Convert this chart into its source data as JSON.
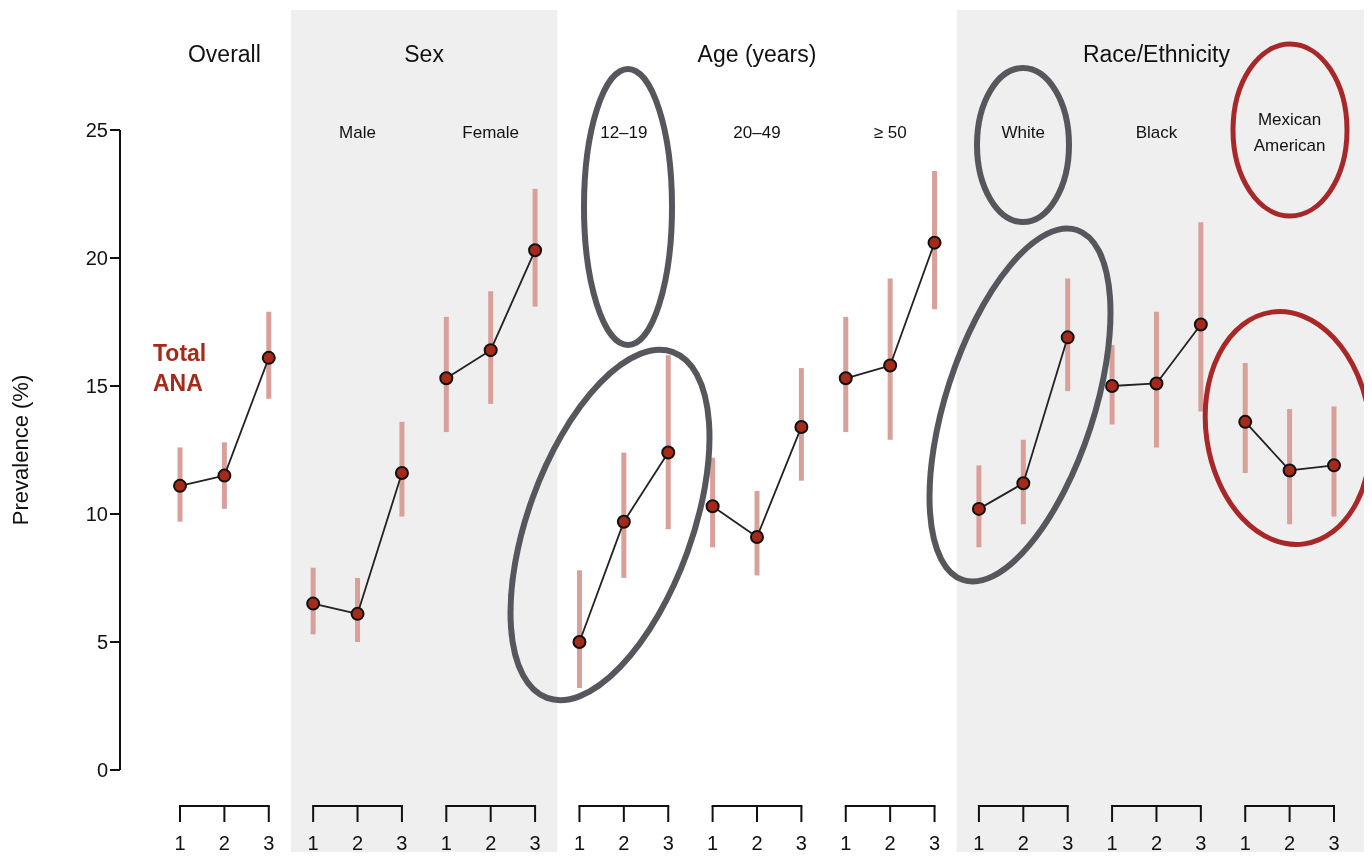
{
  "chart_data": {
    "type": "line",
    "ylabel": "Prevalence (%)",
    "ylim": [
      0,
      25
    ],
    "yticks": [
      0,
      5,
      10,
      15,
      20,
      25
    ],
    "marker": "circle",
    "line_style": "solid",
    "categories": [
      "1",
      "2",
      "3",
      "1",
      "2",
      "3",
      "1",
      "2",
      "3",
      "1",
      "2",
      "3",
      "1",
      "2",
      "3",
      "1",
      "2",
      "3",
      "1",
      "2",
      "3",
      "1",
      "2",
      "3",
      "1",
      "2",
      "3"
    ],
    "annotations": [
      "Overall",
      "Sex",
      "Age (years)",
      "Race/Ethnicity",
      "Male",
      "Female",
      "12–19",
      "20–49",
      "≥ 50",
      "White",
      "Black",
      "Mexican American",
      "Total ANA"
    ],
    "series": [
      {
        "color": "#a52a1a",
        "values": [
          11.1,
          11.5,
          16.1,
          null,
          null,
          null,
          null,
          null,
          null,
          null,
          null,
          null,
          null,
          null,
          null,
          null,
          null,
          null,
          null,
          null,
          null,
          null,
          null,
          null,
          null,
          null,
          null
        ],
        "errors": [
          [
            9.7,
            12.6
          ],
          [
            10.2,
            12.8
          ],
          [
            14.5,
            17.9
          ],
          null,
          null,
          null,
          null,
          null,
          null,
          null,
          null,
          null,
          null,
          null,
          null,
          null,
          null,
          null,
          null,
          null,
          null,
          null,
          null,
          null,
          null,
          null,
          null
        ]
      },
      {
        "color": "#a52a1a",
        "values": [
          null,
          null,
          null,
          6.5,
          6.1,
          11.6,
          null,
          null,
          null,
          null,
          null,
          null,
          null,
          null,
          null,
          null,
          null,
          null,
          null,
          null,
          null,
          null,
          null,
          null,
          null,
          null,
          null
        ],
        "errors": [
          null,
          null,
          null,
          [
            5.3,
            7.9
          ],
          [
            5.0,
            7.5
          ],
          [
            9.9,
            13.6
          ],
          null,
          null,
          null,
          null,
          null,
          null,
          null,
          null,
          null,
          null,
          null,
          null,
          null,
          null,
          null,
          null,
          null,
          null,
          null,
          null,
          null
        ]
      },
      {
        "color": "#a52a1a",
        "values": [
          null,
          null,
          null,
          null,
          null,
          null,
          15.3,
          16.4,
          20.3,
          null,
          null,
          null,
          null,
          null,
          null,
          null,
          null,
          null,
          null,
          null,
          null,
          null,
          null,
          null,
          null,
          null,
          null
        ],
        "errors": [
          null,
          null,
          null,
          null,
          null,
          null,
          [
            13.2,
            17.7
          ],
          [
            14.3,
            18.7
          ],
          [
            18.1,
            22.7
          ],
          null,
          null,
          null,
          null,
          null,
          null,
          null,
          null,
          null,
          null,
          null,
          null,
          null,
          null,
          null,
          null,
          null,
          null
        ]
      },
      {
        "color": "#a52a1a",
        "values": [
          null,
          null,
          null,
          null,
          null,
          null,
          null,
          null,
          null,
          5.0,
          9.7,
          12.4,
          null,
          null,
          null,
          null,
          null,
          null,
          null,
          null,
          null,
          null,
          null,
          null,
          null,
          null,
          null
        ],
        "errors": [
          null,
          null,
          null,
          null,
          null,
          null,
          null,
          null,
          null,
          [
            3.2,
            7.8
          ],
          [
            7.5,
            12.4
          ],
          [
            9.4,
            16.2
          ],
          null,
          null,
          null,
          null,
          null,
          null,
          null,
          null,
          null,
          null,
          null,
          null,
          null,
          null,
          null
        ]
      },
      {
        "color": "#a52a1a",
        "values": [
          null,
          null,
          null,
          null,
          null,
          null,
          null,
          null,
          null,
          null,
          null,
          null,
          10.3,
          9.1,
          13.4,
          null,
          null,
          null,
          null,
          null,
          null,
          null,
          null,
          null,
          null,
          null,
          null
        ],
        "errors": [
          null,
          null,
          null,
          null,
          null,
          null,
          null,
          null,
          null,
          null,
          null,
          null,
          [
            8.7,
            12.2
          ],
          [
            7.6,
            10.9
          ],
          [
            11.3,
            15.7
          ],
          null,
          null,
          null,
          null,
          null,
          null,
          null,
          null,
          null,
          null,
          null,
          null
        ]
      },
      {
        "color": "#a52a1a",
        "values": [
          null,
          null,
          null,
          null,
          null,
          null,
          null,
          null,
          null,
          null,
          null,
          null,
          null,
          null,
          null,
          15.3,
          15.8,
          20.6,
          null,
          null,
          null,
          null,
          null,
          null,
          null,
          null,
          null
        ],
        "errors": [
          null,
          null,
          null,
          null,
          null,
          null,
          null,
          null,
          null,
          null,
          null,
          null,
          null,
          null,
          null,
          [
            13.2,
            17.7
          ],
          [
            12.9,
            19.2
          ],
          [
            18.0,
            23.4
          ],
          null,
          null,
          null,
          null,
          null,
          null,
          null,
          null,
          null
        ]
      },
      {
        "color": "#a52a1a",
        "values": [
          null,
          null,
          null,
          null,
          null,
          null,
          null,
          null,
          null,
          null,
          null,
          null,
          null,
          null,
          null,
          null,
          null,
          null,
          10.2,
          11.2,
          16.9,
          null,
          null,
          null,
          null,
          null,
          null
        ],
        "errors": [
          null,
          null,
          null,
          null,
          null,
          null,
          null,
          null,
          null,
          null,
          null,
          null,
          null,
          null,
          null,
          null,
          null,
          null,
          [
            8.7,
            11.9
          ],
          [
            9.6,
            12.9
          ],
          [
            14.8,
            19.2
          ],
          null,
          null,
          null,
          null,
          null,
          null
        ]
      },
      {
        "color": "#a52a1a",
        "values": [
          null,
          null,
          null,
          null,
          null,
          null,
          null,
          null,
          null,
          null,
          null,
          null,
          null,
          null,
          null,
          null,
          null,
          null,
          null,
          null,
          null,
          15.0,
          15.1,
          17.4,
          null,
          null,
          null
        ],
        "errors": [
          null,
          null,
          null,
          null,
          null,
          null,
          null,
          null,
          null,
          null,
          null,
          null,
          null,
          null,
          null,
          null,
          null,
          null,
          null,
          null,
          null,
          [
            13.5,
            16.6
          ],
          [
            12.6,
            17.9
          ],
          [
            14.0,
            21.4
          ],
          null,
          null,
          null
        ]
      },
      {
        "color": "#a52a1a",
        "values": [
          null,
          null,
          null,
          null,
          null,
          null,
          null,
          null,
          null,
          null,
          null,
          null,
          null,
          null,
          null,
          null,
          null,
          null,
          null,
          null,
          null,
          null,
          null,
          null,
          13.6,
          11.7,
          11.9
        ],
        "errors": [
          null,
          null,
          null,
          null,
          null,
          null,
          null,
          null,
          null,
          null,
          null,
          null,
          null,
          null,
          null,
          null,
          null,
          null,
          null,
          null,
          null,
          null,
          null,
          null,
          [
            11.6,
            15.9
          ],
          [
            9.6,
            14.1
          ],
          [
            9.9,
            14.2
          ]
        ]
      }
    ]
  }
}
